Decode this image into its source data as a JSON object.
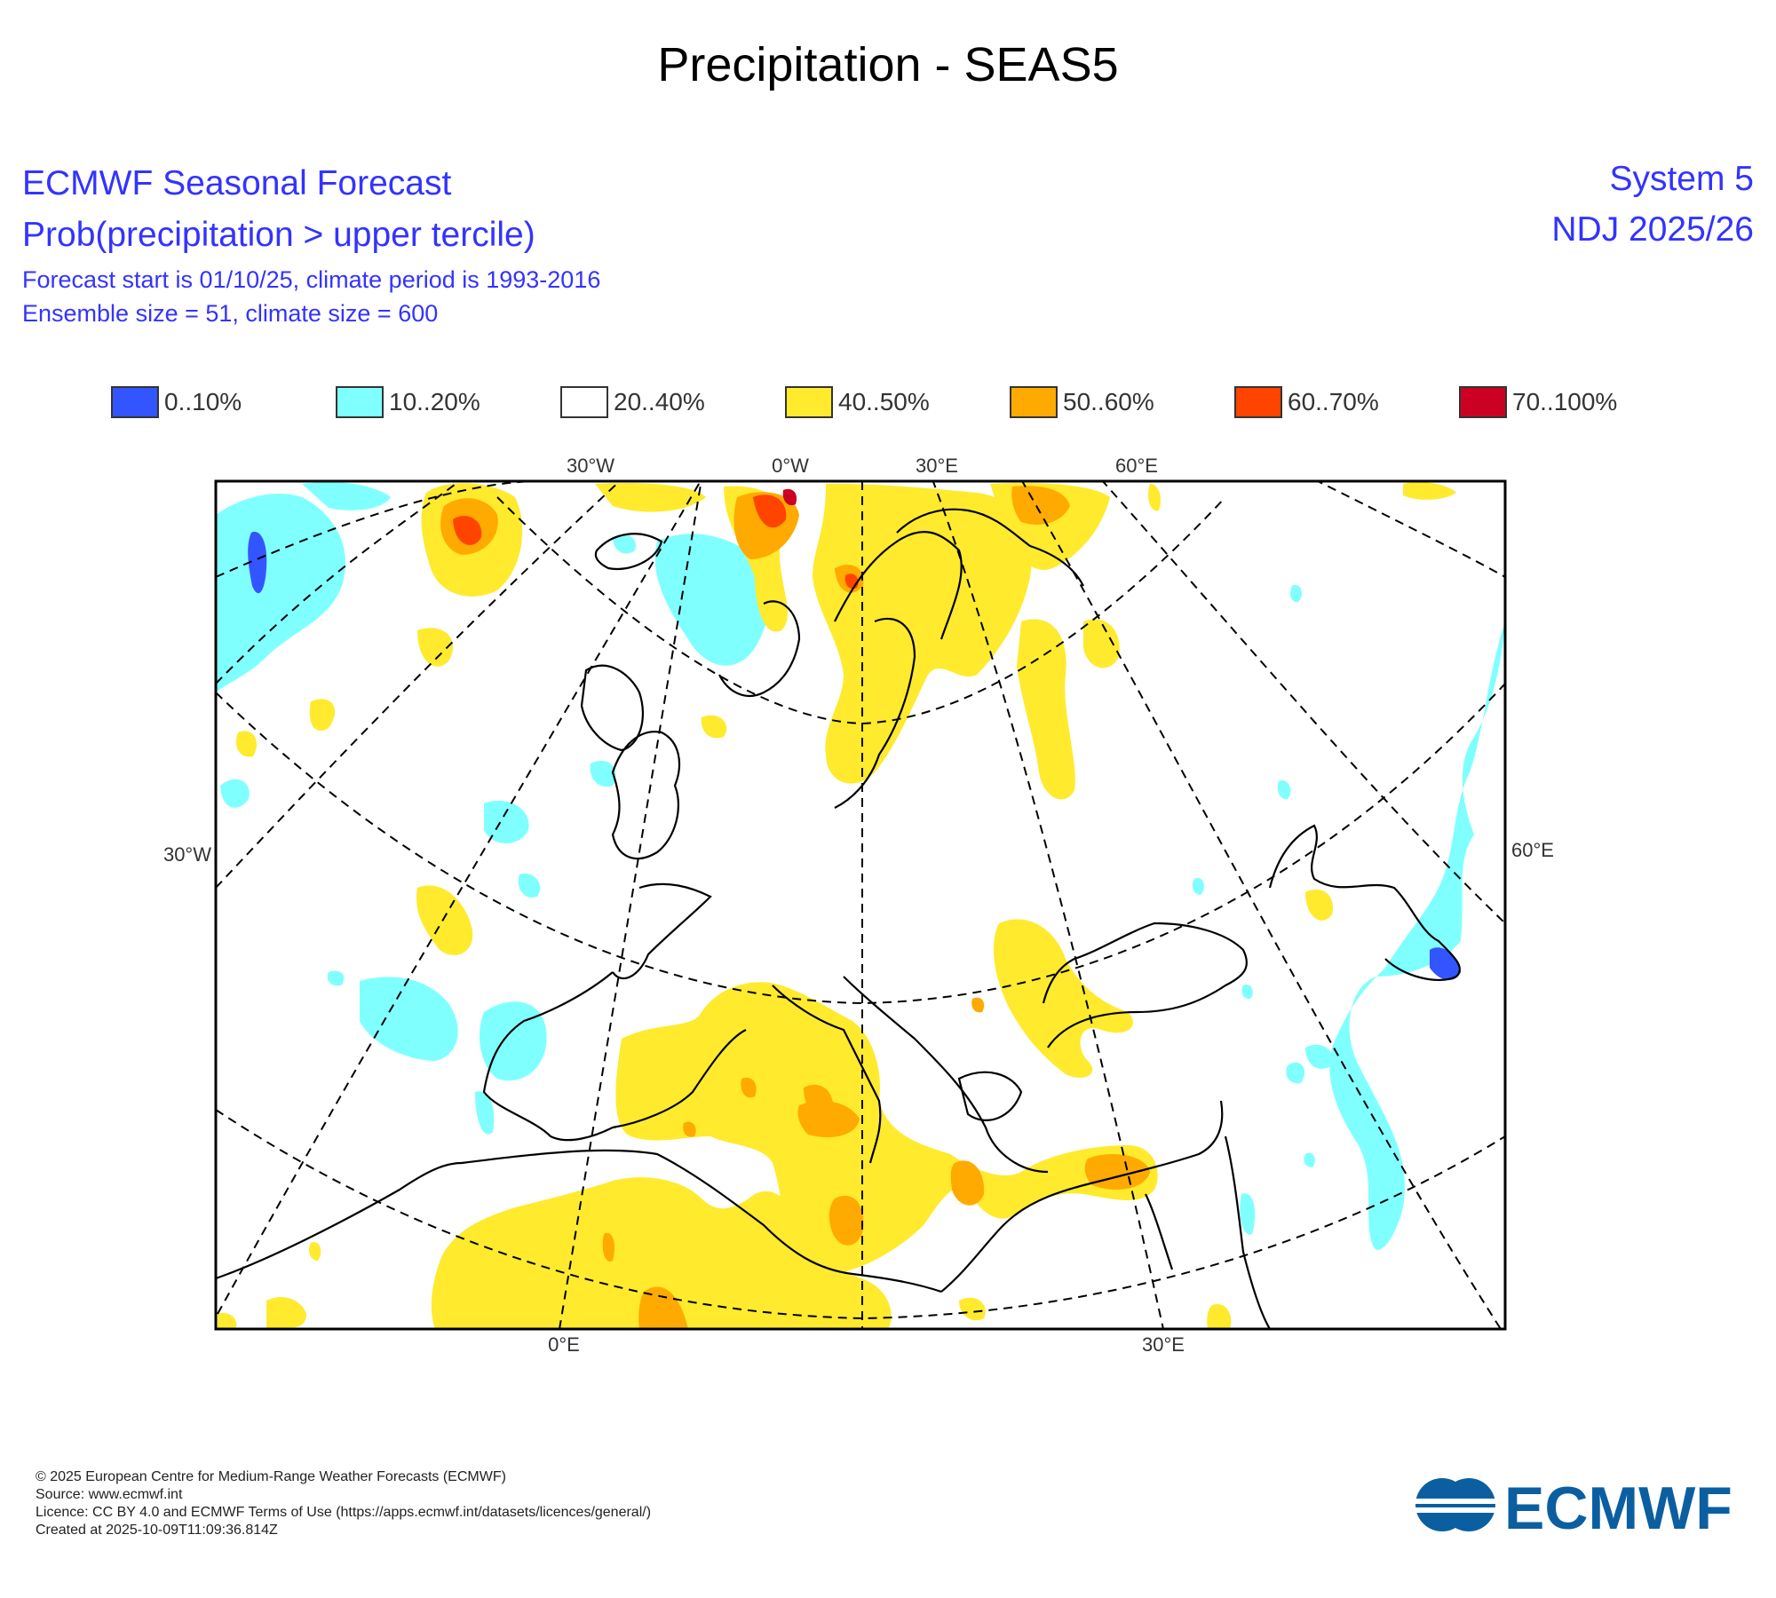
{
  "title": "Precipitation - SEAS5",
  "header": {
    "org": "ECMWF Seasonal Forecast",
    "product": "Prob(precipitation > upper tercile)",
    "forecast_start": "Forecast start is 01/10/25, climate period is 1993-2016",
    "ensemble": "Ensemble size = 51, climate size = 600",
    "system": "System 5",
    "period": "NDJ 2025/26"
  },
  "legend": [
    {
      "label": "0..10%",
      "color": "#3355ff"
    },
    {
      "label": "10..20%",
      "color": "#80ffff"
    },
    {
      "label": "20..40%",
      "color": "#ffffff"
    },
    {
      "label": "40..50%",
      "color": "#ffea2e"
    },
    {
      "label": "50..60%",
      "color": "#ffaa00"
    },
    {
      "label": "60..70%",
      "color": "#ff4400"
    },
    {
      "label": "70..100%",
      "color": "#cc0022"
    }
  ],
  "map": {
    "labels_top": [
      "30°W",
      "0°W",
      "30°E",
      "60°E"
    ],
    "label_left": "30°W",
    "label_right": "60°E",
    "labels_bottom": [
      "0°E",
      "30°E"
    ]
  },
  "footer": {
    "copyright": "© 2025 European Centre for Medium-Range Weather Forecasts (ECMWF)",
    "source": "Source: www.ecmwf.int",
    "licence": "Licence: CC BY 4.0 and ECMWF Terms of Use (https://apps.ecmwf.int/datasets/licences/general/)",
    "created": "Created at 2025-10-09T11:09:36.814Z"
  },
  "logo_text": "ECMWF"
}
